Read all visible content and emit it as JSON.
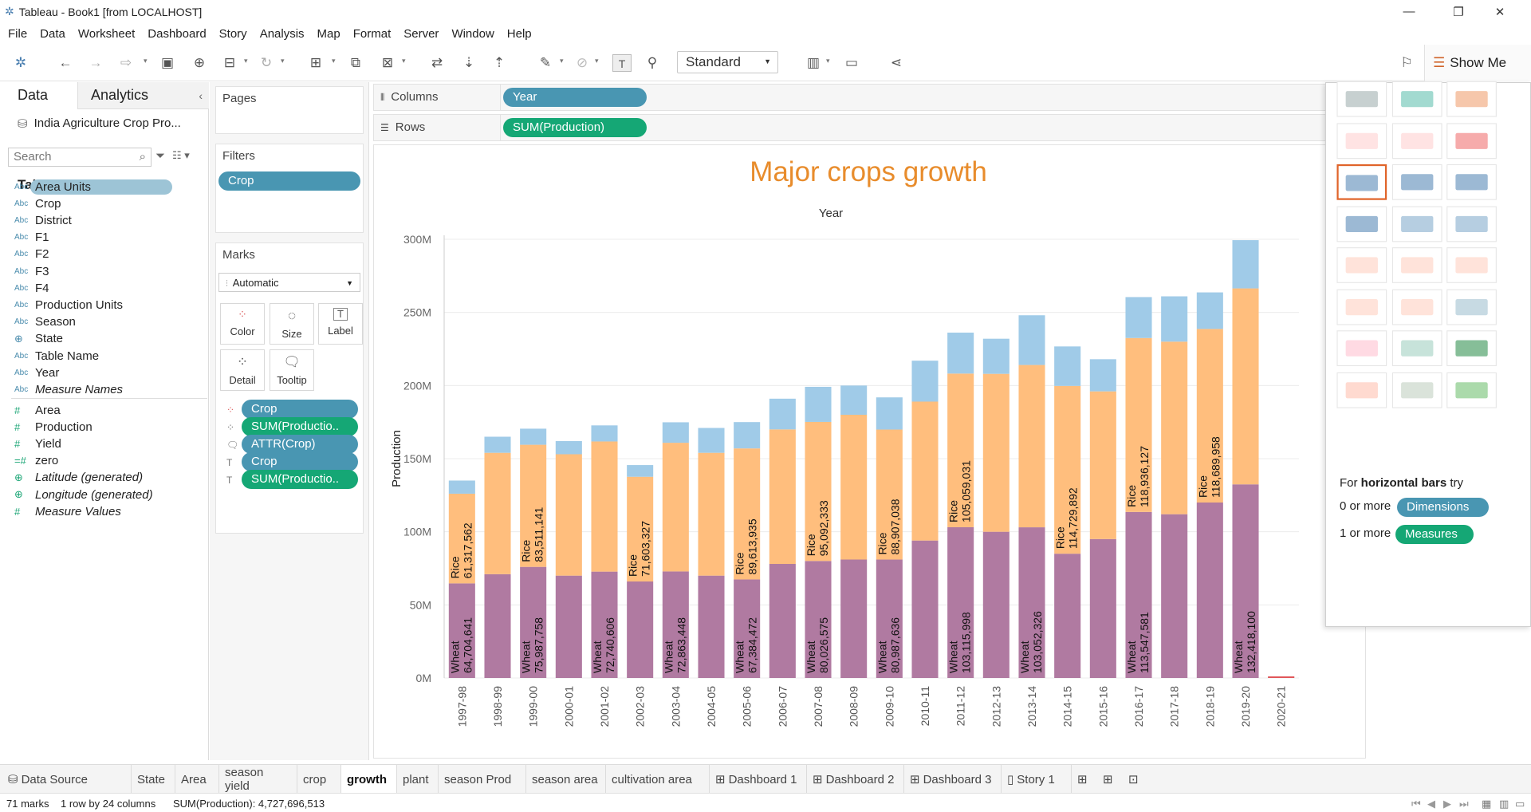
{
  "window": {
    "title": "Tableau - Book1 [from LOCALHOST]"
  },
  "menu": [
    "File",
    "Data",
    "Worksheet",
    "Dashboard",
    "Story",
    "Analysis",
    "Map",
    "Format",
    "Server",
    "Window",
    "Help"
  ],
  "toolbar": {
    "fit_mode": "Standard",
    "show_me": "Show Me"
  },
  "data_pane": {
    "tab_data": "Data",
    "tab_analytics": "Analytics",
    "datasource": "India Agriculture Crop Pro...",
    "search_placeholder": "Search",
    "tables_header": "Tables",
    "dimensions": [
      {
        "type": "Abc",
        "name": "Area Units"
      },
      {
        "type": "Abc",
        "name": "Crop"
      },
      {
        "type": "Abc",
        "name": "District"
      },
      {
        "type": "Abc",
        "name": "F1"
      },
      {
        "type": "Abc",
        "name": "F2"
      },
      {
        "type": "Abc",
        "name": "F3"
      },
      {
        "type": "Abc",
        "name": "F4"
      },
      {
        "type": "Abc",
        "name": "Production Units"
      },
      {
        "type": "Abc",
        "name": "Season"
      },
      {
        "type": "globe",
        "name": "State"
      },
      {
        "type": "Abc",
        "name": "Table Name"
      },
      {
        "type": "Abc",
        "name": "Year"
      },
      {
        "type": "Abc",
        "name": "Measure Names"
      }
    ],
    "measures": [
      {
        "type": "#",
        "name": "Area"
      },
      {
        "type": "#",
        "name": "Production"
      },
      {
        "type": "#",
        "name": "Yield"
      },
      {
        "type": "=#",
        "name": "zero"
      },
      {
        "type": "globe",
        "name": "Latitude (generated)"
      },
      {
        "type": "globe",
        "name": "Longitude (generated)"
      },
      {
        "type": "#",
        "name": "Measure Values"
      }
    ]
  },
  "cards": {
    "pages": "Pages",
    "filters": "Filters",
    "filter_pill": "Crop",
    "marks": "Marks",
    "mark_type": "Automatic",
    "mark_buttons": [
      "Color",
      "Size",
      "Label",
      "Detail",
      "Tooltip"
    ],
    "mark_pills": [
      "Crop",
      "SUM(Productio..",
      "ATTR(Crop)",
      "Crop",
      "SUM(Productio.."
    ]
  },
  "shelves": {
    "columns_label": "Columns",
    "columns_pill": "Year",
    "rows_label": "Rows",
    "rows_pill": "SUM(Production)"
  },
  "chart_data": {
    "type": "bar",
    "title": "Major crops  growth",
    "column_header": "Year",
    "ylabel": "Production",
    "ylim": [
      0,
      300000000
    ],
    "yticks": [
      "0M",
      "50M",
      "100M",
      "150M",
      "200M",
      "250M",
      "300M"
    ],
    "categories": [
      "1997-98",
      "1998-99",
      "1999-00",
      "2000-01",
      "2001-02",
      "2002-03",
      "2003-04",
      "2004-05",
      "2005-06",
      "2006-07",
      "2007-08",
      "2008-09",
      "2009-10",
      "2010-11",
      "2011-12",
      "2012-13",
      "2013-14",
      "2014-15",
      "2015-16",
      "2016-17",
      "2017-18",
      "2018-19",
      "2019-20",
      "2020-21"
    ],
    "stacked": true,
    "series": [
      {
        "name": "Wheat",
        "color": "#b07aa1",
        "values": [
          64704641,
          71000000,
          75987758,
          70000000,
          72740606,
          66000000,
          72863448,
          70000000,
          67384472,
          78000000,
          80026575,
          81000000,
          80987636,
          94000000,
          103115998,
          100000000,
          103052326,
          85000000,
          95000000,
          113547581,
          112000000,
          120000000,
          132418100,
          0
        ]
      },
      {
        "name": "Rice",
        "color": "#ffbe7d",
        "values": [
          61317562,
          83000000,
          83511141,
          83000000,
          89000000,
          71603327,
          88000000,
          84000000,
          89613935,
          92000000,
          95092333,
          99000000,
          88907038,
          95000000,
          105059031,
          108000000,
          111000000,
          114729892,
          101000000,
          118936127,
          118000000,
          118689958,
          134000000,
          0
        ]
      },
      {
        "name": "Other",
        "color": "#a0cbe8",
        "values": [
          9000000,
          11000000,
          11000000,
          9000000,
          11000000,
          8000000,
          14000000,
          17000000,
          18000000,
          21000000,
          24000000,
          20000000,
          22000000,
          28000000,
          28000000,
          24000000,
          34000000,
          27000000,
          22000000,
          28000000,
          31000000,
          25000000,
          33000000,
          1000000
        ]
      }
    ],
    "labels": {
      "wheat_label": "Wheat",
      "rice_label": "Rice",
      "wheat_shown": [
        "64,704,641",
        "",
        "75,987,758",
        "",
        "72,740,606",
        "",
        "72,863,448",
        "",
        "67,384,472",
        "",
        "80,026,575",
        "",
        "80,987,636",
        "",
        "103,115,998",
        "",
        "103,052,326",
        "",
        "",
        "113,547,581",
        "",
        "",
        "132,418,100",
        ""
      ],
      "rice_shown": [
        "61,317,562",
        "",
        "83,511,141",
        "",
        "",
        "71,603,327",
        "",
        "",
        "89,613,935",
        "",
        "95,092,333",
        "",
        "88,907,038",
        "",
        "105,059,031",
        "",
        "",
        "114,729,892",
        "",
        "118,936,127",
        "",
        "118,689,958",
        "",
        ""
      ]
    }
  },
  "showme": {
    "hint_prefix": "For ",
    "hint_bold": "horizontal bars",
    "hint_suffix": " try",
    "dim_prefix": "0 or more",
    "dim_pill": "Dimensions",
    "mea_prefix": "1 or more",
    "mea_pill": "Measures"
  },
  "sheet_tabs": [
    "Data Source",
    "State",
    "Area",
    "season yield",
    "crop",
    "growth",
    "plant",
    "season Prod",
    "season area",
    "cultivation area",
    "Dashboard 1",
    "Dashboard 2",
    "Dashboard 3",
    "Story 1"
  ],
  "active_tab": "growth",
  "status": {
    "marks": "71 marks",
    "dims": "1 row by 24 columns",
    "sum": "SUM(Production): 4,727,696,513"
  }
}
